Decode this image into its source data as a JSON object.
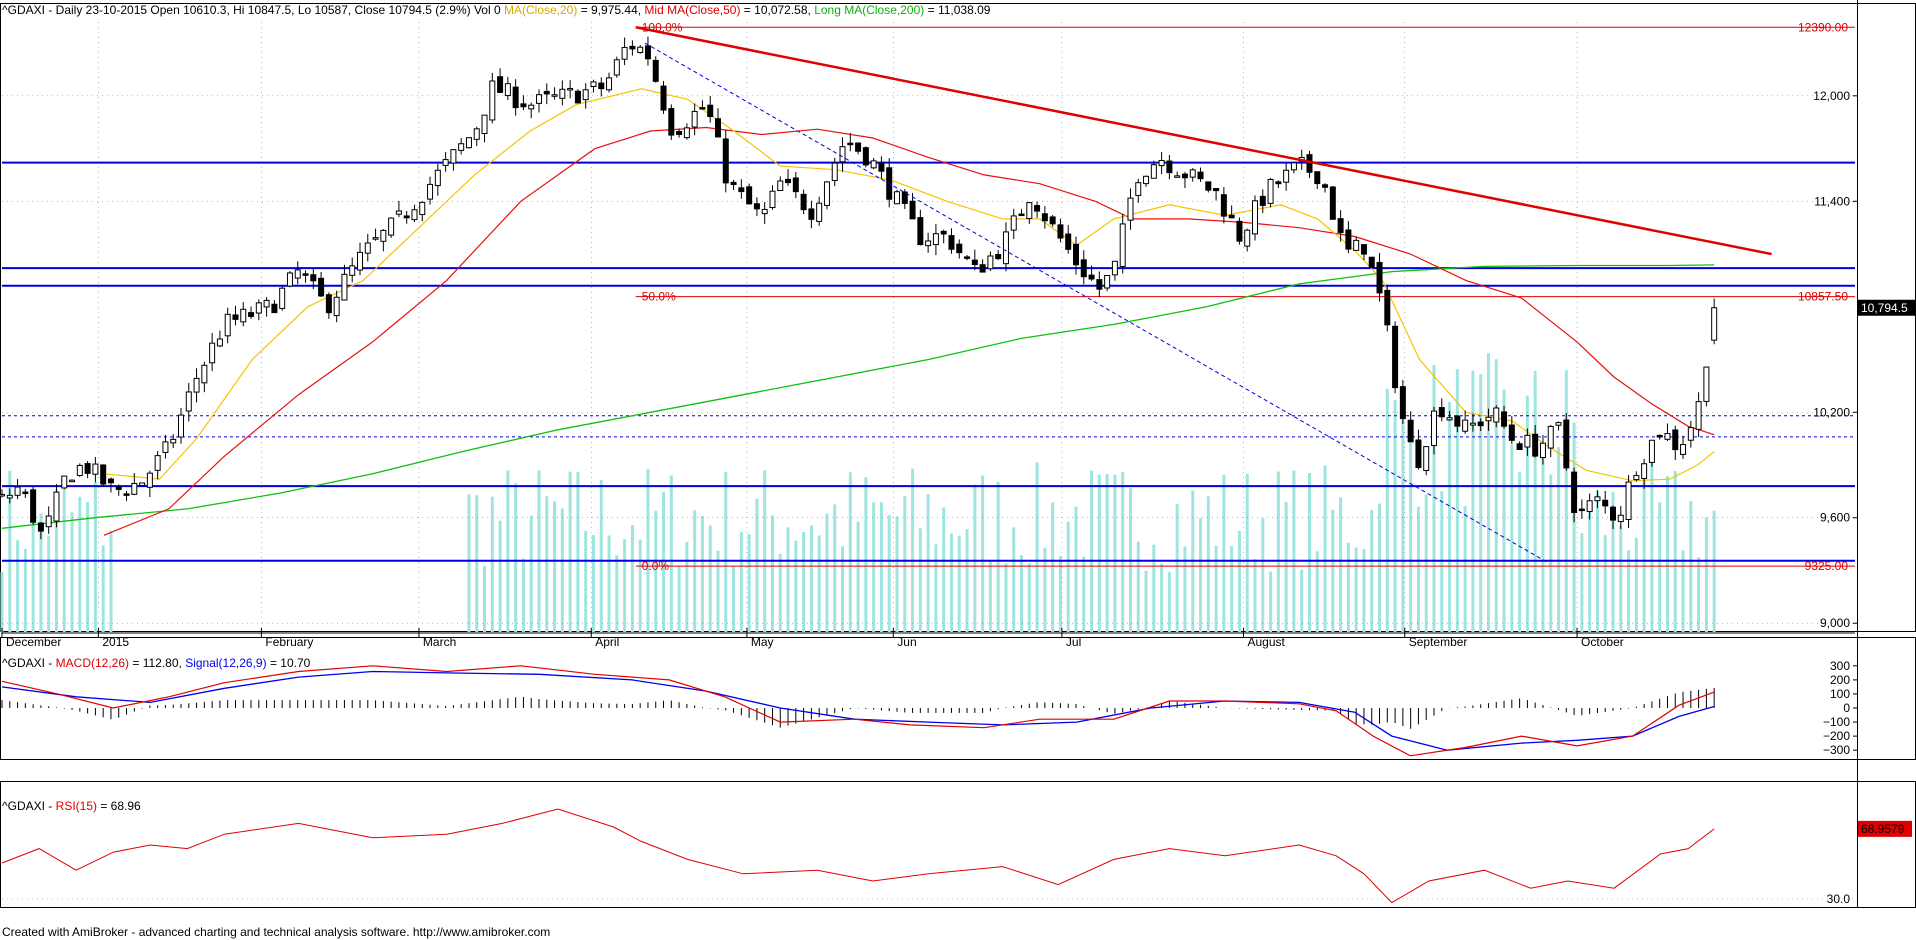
{
  "header": {
    "symbol": "^GDAXI",
    "info": "- Daily 23-10-2015 Open 10610.3, Hi 10847.5, Lo 10587, Close 10794.5 (2.9%) Vol 0",
    "ma20_label": "MA(Close,20)",
    "ma20_value": "= 9,975.44,",
    "ma50_label": "Mid MA(Close,50)",
    "ma50_value": "= 10,072.58,",
    "ma200_label": "Long MA(Close,200)",
    "ma200_value": "= 11,038.09"
  },
  "colors": {
    "candle": "#000000",
    "volume": "#9ee5e0",
    "ma20": "#f5c400",
    "ma50": "#e81010",
    "ma200": "#10c010",
    "hline": "#0000dd",
    "trend": "#e00000",
    "fib": "#e00000",
    "macd": "#e00000",
    "signal": "#0000ee",
    "rsi": "#e00000"
  },
  "chart_data": [
    {
      "type": "candlestick",
      "y_ticks": [
        "12,000",
        "11,400",
        "10,200",
        "9,600",
        "9,000"
      ],
      "ylim": [
        8950,
        12420
      ],
      "x_month_labels": [
        "December",
        "2015",
        "February",
        "March",
        "April",
        "May",
        "Jun",
        "Jul",
        "August",
        "September",
        "October"
      ],
      "last_close": "10,794.5",
      "horizontal_levels": [
        11620,
        11020,
        10920,
        10180,
        10060,
        9780,
        9355
      ],
      "fibonacci": {
        "levels": [
          {
            "label": "100.0%",
            "value": "12390.00",
            "price": 12390
          },
          {
            "label": "50.0%",
            "value": "10857.50",
            "price": 10857.5
          },
          {
            "label": "0.0%",
            "value": "9325.00",
            "price": 9325
          }
        ]
      },
      "trendline": {
        "from": [
          0.342,
          12390
        ],
        "to": [
          0.955,
          11100
        ]
      },
      "dashed_trendline": {
        "from": [
          0.347,
          12300
        ],
        "to": [
          0.835,
          9340
        ]
      },
      "anchor_path": [
        [
          0.0,
          9700
        ],
        [
          0.01,
          9780
        ],
        [
          0.022,
          9480
        ],
        [
          0.035,
          9850
        ],
        [
          0.045,
          9900
        ],
        [
          0.06,
          9750
        ],
        [
          0.075,
          9800
        ],
        [
          0.09,
          10000
        ],
        [
          0.105,
          10400
        ],
        [
          0.12,
          10700
        ],
        [
          0.145,
          10800
        ],
        [
          0.16,
          11000
        ],
        [
          0.175,
          10800
        ],
        [
          0.195,
          11100
        ],
        [
          0.215,
          11300
        ],
        [
          0.235,
          11550
        ],
        [
          0.255,
          11800
        ],
        [
          0.265,
          12050
        ],
        [
          0.285,
          11950
        ],
        [
          0.305,
          12000
        ],
        [
          0.325,
          12050
        ],
        [
          0.338,
          12300
        ],
        [
          0.348,
          12250
        ],
        [
          0.362,
          11800
        ],
        [
          0.38,
          11950
        ],
        [
          0.392,
          11500
        ],
        [
          0.41,
          11300
        ],
        [
          0.42,
          11500
        ],
        [
          0.437,
          11350
        ],
        [
          0.455,
          11750
        ],
        [
          0.468,
          11650
        ],
        [
          0.48,
          11450
        ],
        [
          0.495,
          11200
        ],
        [
          0.51,
          11200
        ],
        [
          0.525,
          11000
        ],
        [
          0.54,
          11150
        ],
        [
          0.555,
          11450
        ],
        [
          0.567,
          11250
        ],
        [
          0.58,
          11050
        ],
        [
          0.592,
          10900
        ],
        [
          0.6,
          11000
        ],
        [
          0.612,
          11550
        ],
        [
          0.625,
          11650
        ],
        [
          0.64,
          11550
        ],
        [
          0.655,
          11450
        ],
        [
          0.668,
          11200
        ],
        [
          0.682,
          11450
        ],
        [
          0.7,
          11600
        ],
        [
          0.712,
          11550
        ],
        [
          0.725,
          11100
        ],
        [
          0.735,
          11150
        ],
        [
          0.745,
          10800
        ],
        [
          0.755,
          10200
        ],
        [
          0.763,
          9900
        ],
        [
          0.775,
          10250
        ],
        [
          0.79,
          10100
        ],
        [
          0.805,
          10200
        ],
        [
          0.815,
          10050
        ],
        [
          0.828,
          10000
        ],
        [
          0.84,
          10100
        ],
        [
          0.85,
          9600
        ],
        [
          0.86,
          9700
        ],
        [
          0.872,
          9600
        ],
        [
          0.882,
          9900
        ],
        [
          0.895,
          10100
        ],
        [
          0.905,
          10000
        ],
        [
          0.915,
          10200
        ],
        [
          0.924,
          10794.5
        ]
      ],
      "ma20_path": [
        [
          0.055,
          9850
        ],
        [
          0.085,
          9820
        ],
        [
          0.105,
          10050
        ],
        [
          0.135,
          10500
        ],
        [
          0.165,
          10800
        ],
        [
          0.195,
          10950
        ],
        [
          0.225,
          11250
        ],
        [
          0.255,
          11550
        ],
        [
          0.285,
          11800
        ],
        [
          0.31,
          11950
        ],
        [
          0.345,
          12040
        ],
        [
          0.37,
          11980
        ],
        [
          0.395,
          11800
        ],
        [
          0.42,
          11600
        ],
        [
          0.45,
          11580
        ],
        [
          0.48,
          11520
        ],
        [
          0.51,
          11400
        ],
        [
          0.54,
          11300
        ],
        [
          0.56,
          11300
        ],
        [
          0.58,
          11150
        ],
        [
          0.6,
          11300
        ],
        [
          0.63,
          11380
        ],
        [
          0.66,
          11320
        ],
        [
          0.69,
          11380
        ],
        [
          0.71,
          11300
        ],
        [
          0.73,
          11120
        ],
        [
          0.745,
          10950
        ],
        [
          0.765,
          10500
        ],
        [
          0.79,
          10200
        ],
        [
          0.815,
          10150
        ],
        [
          0.835,
          10000
        ],
        [
          0.855,
          9870
        ],
        [
          0.88,
          9810
        ],
        [
          0.9,
          9820
        ],
        [
          0.915,
          9900
        ],
        [
          0.924,
          9975.44
        ]
      ],
      "ma50_path": [
        [
          0.055,
          9500
        ],
        [
          0.09,
          9650
        ],
        [
          0.12,
          9950
        ],
        [
          0.16,
          10300
        ],
        [
          0.2,
          10600
        ],
        [
          0.24,
          10950
        ],
        [
          0.28,
          11400
        ],
        [
          0.32,
          11700
        ],
        [
          0.35,
          11800
        ],
        [
          0.38,
          11820
        ],
        [
          0.41,
          11780
        ],
        [
          0.44,
          11810
        ],
        [
          0.47,
          11760
        ],
        [
          0.5,
          11650
        ],
        [
          0.53,
          11550
        ],
        [
          0.56,
          11500
        ],
        [
          0.59,
          11400
        ],
        [
          0.61,
          11300
        ],
        [
          0.64,
          11300
        ],
        [
          0.67,
          11280
        ],
        [
          0.7,
          11250
        ],
        [
          0.73,
          11200
        ],
        [
          0.76,
          11100
        ],
        [
          0.79,
          10950
        ],
        [
          0.82,
          10850
        ],
        [
          0.85,
          10600
        ],
        [
          0.87,
          10400
        ],
        [
          0.89,
          10250
        ],
        [
          0.91,
          10120
        ],
        [
          0.924,
          10072.58
        ]
      ],
      "ma200_path": [
        [
          0.0,
          9540
        ],
        [
          0.05,
          9600
        ],
        [
          0.1,
          9650
        ],
        [
          0.15,
          9740
        ],
        [
          0.2,
          9850
        ],
        [
          0.25,
          9980
        ],
        [
          0.3,
          10100
        ],
        [
          0.35,
          10200
        ],
        [
          0.4,
          10300
        ],
        [
          0.45,
          10400
        ],
        [
          0.5,
          10500
        ],
        [
          0.55,
          10620
        ],
        [
          0.6,
          10700
        ],
        [
          0.65,
          10800
        ],
        [
          0.7,
          10930
        ],
        [
          0.75,
          11000
        ],
        [
          0.8,
          11030
        ],
        [
          0.85,
          11035
        ],
        [
          0.9,
          11035
        ],
        [
          0.924,
          11038.09
        ]
      ],
      "volume_base_pct": 0
    },
    {
      "type": "line",
      "label": "^GDAXI - MACD(12,26) = 112.80, Signal(12,26,9) = 10.70",
      "symbol": "^GDAXI -",
      "macd_label": "MACD(12,26)",
      "macd_value": "= 112.80,",
      "signal_label": "Signal(12,26,9)",
      "signal_value": "= 10.70",
      "y_ticks": [
        "300",
        "200",
        "100",
        "0",
        "−100",
        "−200",
        "−300"
      ],
      "ylim": [
        -370,
        370
      ],
      "macd_path": [
        [
          0.0,
          190
        ],
        [
          0.03,
          100
        ],
        [
          0.06,
          0
        ],
        [
          0.09,
          80
        ],
        [
          0.12,
          180
        ],
        [
          0.16,
          260
        ],
        [
          0.2,
          300
        ],
        [
          0.24,
          260
        ],
        [
          0.28,
          300
        ],
        [
          0.32,
          240
        ],
        [
          0.36,
          200
        ],
        [
          0.39,
          80
        ],
        [
          0.42,
          -100
        ],
        [
          0.46,
          -80
        ],
        [
          0.49,
          -120
        ],
        [
          0.53,
          -140
        ],
        [
          0.56,
          -80
        ],
        [
          0.6,
          -80
        ],
        [
          0.63,
          50
        ],
        [
          0.66,
          50
        ],
        [
          0.7,
          30
        ],
        [
          0.72,
          -20
        ],
        [
          0.74,
          -200
        ],
        [
          0.76,
          -340
        ],
        [
          0.79,
          -280
        ],
        [
          0.82,
          -200
        ],
        [
          0.85,
          -270
        ],
        [
          0.88,
          -200
        ],
        [
          0.905,
          20
        ],
        [
          0.924,
          112.8
        ]
      ],
      "signal_path": [
        [
          0.0,
          150
        ],
        [
          0.04,
          80
        ],
        [
          0.08,
          40
        ],
        [
          0.12,
          140
        ],
        [
          0.16,
          220
        ],
        [
          0.2,
          260
        ],
        [
          0.24,
          250
        ],
        [
          0.29,
          240
        ],
        [
          0.34,
          200
        ],
        [
          0.38,
          120
        ],
        [
          0.42,
          0
        ],
        [
          0.46,
          -80
        ],
        [
          0.5,
          -100
        ],
        [
          0.54,
          -120
        ],
        [
          0.58,
          -100
        ],
        [
          0.62,
          0
        ],
        [
          0.66,
          50
        ],
        [
          0.7,
          40
        ],
        [
          0.73,
          -30
        ],
        [
          0.75,
          -200
        ],
        [
          0.78,
          -300
        ],
        [
          0.82,
          -250
        ],
        [
          0.85,
          -230
        ],
        [
          0.88,
          -200
        ],
        [
          0.905,
          -60
        ],
        [
          0.924,
          10.7
        ]
      ]
    },
    {
      "type": "line",
      "label": "^GDAXI - RSI(15) = 68.96",
      "symbol": "^GDAXI -",
      "rsi_label": "RSI(15)",
      "rsi_value": "= 68.96",
      "last_value": "68.9579",
      "y_ticks": [
        "30.0"
      ],
      "ylim": [
        25,
        85
      ],
      "rsi_path": [
        [
          0.0,
          50
        ],
        [
          0.02,
          58
        ],
        [
          0.04,
          46
        ],
        [
          0.06,
          56
        ],
        [
          0.08,
          60
        ],
        [
          0.1,
          58
        ],
        [
          0.12,
          66
        ],
        [
          0.16,
          72
        ],
        [
          0.2,
          64
        ],
        [
          0.24,
          66
        ],
        [
          0.27,
          72
        ],
        [
          0.3,
          80
        ],
        [
          0.33,
          70
        ],
        [
          0.345,
          62
        ],
        [
          0.37,
          52
        ],
        [
          0.4,
          44
        ],
        [
          0.44,
          46
        ],
        [
          0.47,
          40
        ],
        [
          0.5,
          44
        ],
        [
          0.54,
          48
        ],
        [
          0.57,
          38
        ],
        [
          0.6,
          52
        ],
        [
          0.63,
          58
        ],
        [
          0.66,
          54
        ],
        [
          0.7,
          60
        ],
        [
          0.72,
          54
        ],
        [
          0.735,
          44
        ],
        [
          0.75,
          28
        ],
        [
          0.77,
          40
        ],
        [
          0.8,
          46
        ],
        [
          0.825,
          36
        ],
        [
          0.845,
          40
        ],
        [
          0.87,
          36
        ],
        [
          0.895,
          55
        ],
        [
          0.91,
          58
        ],
        [
          0.924,
          68.96
        ]
      ]
    }
  ],
  "footer": "Created with AmiBroker - advanced charting and technical analysis software. http://www.amibroker.com"
}
